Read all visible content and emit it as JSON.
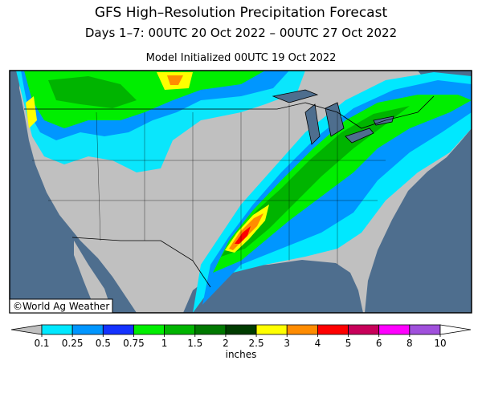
{
  "title": "GFS High–Resolution Precipitation Forecast",
  "subtitle": "Days 1–7: 00UTC 20 Oct 2022 – 00UTC 27 Oct 2022",
  "initialized": "Model Initialized 00UTC 19 Oct 2022",
  "credit": "©World Ag Weather",
  "colorbar": {
    "ticks": [
      0.1,
      0.25,
      0.5,
      0.75,
      1,
      1.5,
      2,
      2.5,
      3,
      4,
      5,
      6,
      8,
      10
    ],
    "colors": [
      "#c0c0c0",
      "#00e8ff",
      "#0096ff",
      "#1432ff",
      "#00ee00",
      "#00b400",
      "#007800",
      "#003c00",
      "#ffff00",
      "#ff8c00",
      "#ff0000",
      "#c8005a",
      "#ff00ff",
      "#a050dc",
      "#ffffff"
    ],
    "label": "inches"
  }
}
